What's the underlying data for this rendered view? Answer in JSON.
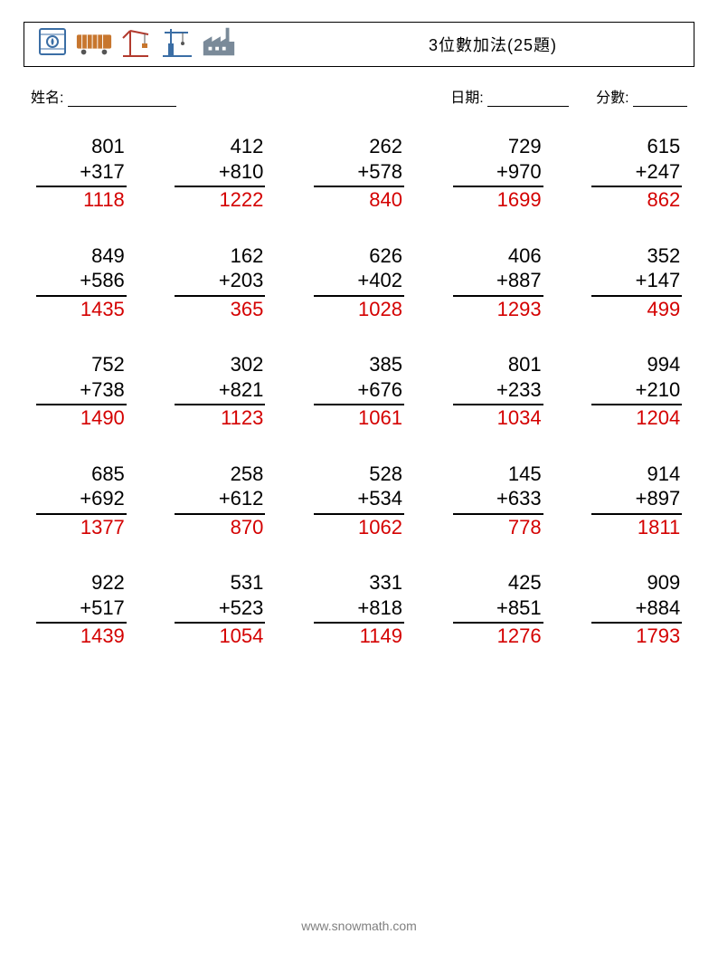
{
  "title": "3位數加法(25題)",
  "labels": {
    "name": "姓名:",
    "date": "日期:",
    "score": "分數:"
  },
  "footer": "www.snowmath.com",
  "answer_color": "#d40000",
  "text_color": "#000000",
  "border_color": "#000000",
  "grid": {
    "rows": 5,
    "cols": 5,
    "font_size": 22
  },
  "problems": [
    {
      "a": 801,
      "b": 317,
      "ans": 1118
    },
    {
      "a": 412,
      "b": 810,
      "ans": 1222
    },
    {
      "a": 262,
      "b": 578,
      "ans": 840
    },
    {
      "a": 729,
      "b": 970,
      "ans": 1699
    },
    {
      "a": 615,
      "b": 247,
      "ans": 862
    },
    {
      "a": 849,
      "b": 586,
      "ans": 1435
    },
    {
      "a": 162,
      "b": 203,
      "ans": 365
    },
    {
      "a": 626,
      "b": 402,
      "ans": 1028
    },
    {
      "a": 406,
      "b": 887,
      "ans": 1293
    },
    {
      "a": 352,
      "b": 147,
      "ans": 499
    },
    {
      "a": 752,
      "b": 738,
      "ans": 1490
    },
    {
      "a": 302,
      "b": 821,
      "ans": 1123
    },
    {
      "a": 385,
      "b": 676,
      "ans": 1061
    },
    {
      "a": 801,
      "b": 233,
      "ans": 1034
    },
    {
      "a": 994,
      "b": 210,
      "ans": 1204
    },
    {
      "a": 685,
      "b": 692,
      "ans": 1377
    },
    {
      "a": 258,
      "b": 612,
      "ans": 870
    },
    {
      "a": 528,
      "b": 534,
      "ans": 1062
    },
    {
      "a": 145,
      "b": 633,
      "ans": 778
    },
    {
      "a": 914,
      "b": 897,
      "ans": 1811
    },
    {
      "a": 922,
      "b": 517,
      "ans": 1439
    },
    {
      "a": 531,
      "b": 523,
      "ans": 1054
    },
    {
      "a": 331,
      "b": 818,
      "ans": 1149
    },
    {
      "a": 425,
      "b": 851,
      "ans": 1276
    },
    {
      "a": 909,
      "b": 884,
      "ans": 1793
    }
  ],
  "logo_icons": [
    "barrel-icon",
    "railcar-icon",
    "crane-icon",
    "dock-crane-icon",
    "factory-icon"
  ],
  "logo_colors": {
    "blue": "#3b6ea5",
    "orange": "#c7762e",
    "red": "#b23a2e",
    "steel": "#7a8a99"
  }
}
